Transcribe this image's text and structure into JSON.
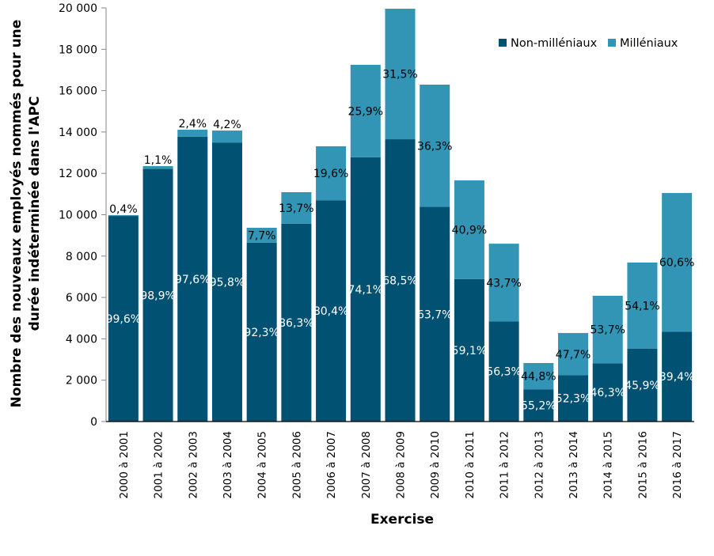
{
  "chart_data": {
    "type": "bar",
    "stacked": true,
    "title": "",
    "xlabel": "Exercise",
    "ylabel": "Nombre des nouveaux employés nommés pour une durée indéterminée dans l'APC",
    "ylabel_lines": [
      "Nombre des nouveaux employés nommés pour une",
      "durée indéterminée dans l'APC"
    ],
    "ylim": [
      0,
      20000
    ],
    "yticks": [
      0,
      2000,
      4000,
      6000,
      8000,
      10000,
      12000,
      14000,
      16000,
      18000,
      20000
    ],
    "ytick_labels": [
      "0",
      "2 000",
      "4 000",
      "6 000",
      "8 000",
      "10 000",
      "12 000",
      "14 000",
      "16 000",
      "18 000",
      "20 000"
    ],
    "grid": false,
    "legend_position": "top-right",
    "categories": [
      "2000 à 2001",
      "2001 à 2002",
      "2002 à 2003",
      "2003 à 2004",
      "2004 à 2005",
      "2005 à 2006",
      "2006 à 2007",
      "2007 à 2008",
      "2008 à 2009",
      "2009 à 2010",
      "2010 à 2011",
      "2011 à 2012",
      "2012 à 2013",
      "2013 à 2014",
      "2014 à 2015",
      "2015 à 2016",
      "2016 à 2017"
    ],
    "series": [
      {
        "name": "Non-milléniaux",
        "color": "#005172",
        "label_color": "#ffffff",
        "values": [
          9940,
          12215,
          13770,
          13480,
          8650,
          9570,
          10700,
          12780,
          13650,
          10380,
          6890,
          4840,
          1560,
          2240,
          2820,
          3530,
          4350
        ],
        "labels": [
          "99,6%",
          "98,9%",
          "97,6%",
          "95,8%",
          "92,3%",
          "86,3%",
          "80,4%",
          "74,1%",
          "68,5%",
          "63,7%",
          "59,1%",
          "56,3%",
          "55,2%",
          "52,3%",
          "46,3%",
          "45,9%",
          "39,4%"
        ]
      },
      {
        "name": "Milléniaux",
        "color": "#3295b5",
        "label_color": "#000000",
        "values": [
          40,
          135,
          340,
          590,
          720,
          1520,
          2610,
          4470,
          6310,
          5910,
          4770,
          3760,
          1270,
          2040,
          3260,
          4160,
          6700
        ],
        "labels": [
          "0,4%",
          "1,1%",
          "2,4%",
          "4,2%",
          "7,7%",
          "13,7%",
          "19,6%",
          "25,9%",
          "31,5%",
          "36,3%",
          "40,9%",
          "43,7%",
          "44,8%",
          "47,7%",
          "53,7%",
          "54,1%",
          "60,6%"
        ]
      }
    ]
  }
}
